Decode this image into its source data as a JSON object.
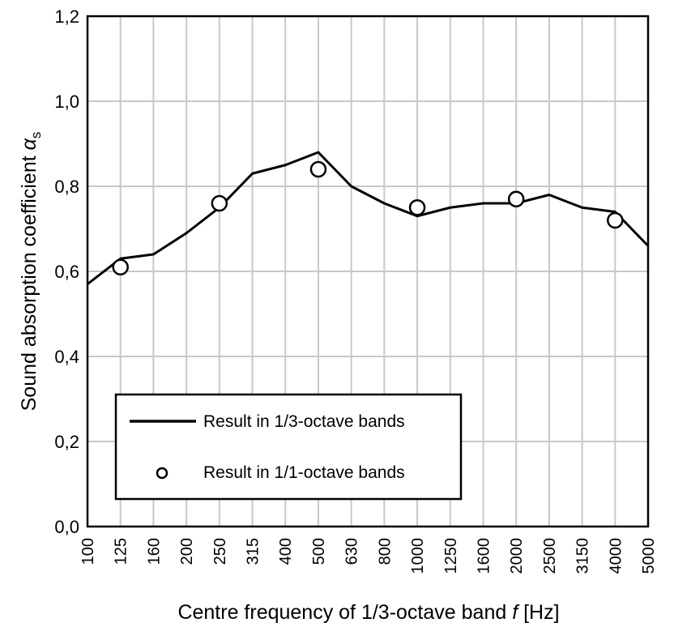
{
  "chart_data": {
    "type": "line",
    "xlabel_prefix": "Centre frequency of 1/3-octave band ",
    "xlabel_var": "f",
    "xlabel_suffix": " [Hz]",
    "ylabel_prefix": "Sound absorption coefficient ",
    "ylabel_var": "α",
    "ylabel_sub": "s",
    "categories": [
      "100",
      "125",
      "160",
      "200",
      "250",
      "315",
      "400",
      "500",
      "630",
      "800",
      "1000",
      "1250",
      "1600",
      "2000",
      "2500",
      "3150",
      "4000",
      "5000"
    ],
    "yticks": [
      "0,0",
      "0,2",
      "0,4",
      "0,6",
      "0,8",
      "1,0",
      "1,2"
    ],
    "ylim": [
      0,
      1.2
    ],
    "grid": true,
    "legend_position": "bottom-left",
    "series": [
      {
        "name": "Result in 1/3-octave bands",
        "style": "line",
        "color": "#000000",
        "values": [
          0.57,
          0.63,
          0.64,
          0.69,
          0.75,
          0.83,
          0.85,
          0.88,
          0.8,
          0.76,
          0.73,
          0.75,
          0.76,
          0.76,
          0.78,
          0.75,
          0.74,
          0.66
        ]
      },
      {
        "name": "Result in 1/1-octave bands",
        "style": "marker-circle-open",
        "color": "#000000",
        "points": [
          {
            "x": "125",
            "y": 0.61
          },
          {
            "x": "250",
            "y": 0.76
          },
          {
            "x": "500",
            "y": 0.84
          },
          {
            "x": "1000",
            "y": 0.75
          },
          {
            "x": "2000",
            "y": 0.77
          },
          {
            "x": "4000",
            "y": 0.72
          }
        ]
      }
    ]
  }
}
